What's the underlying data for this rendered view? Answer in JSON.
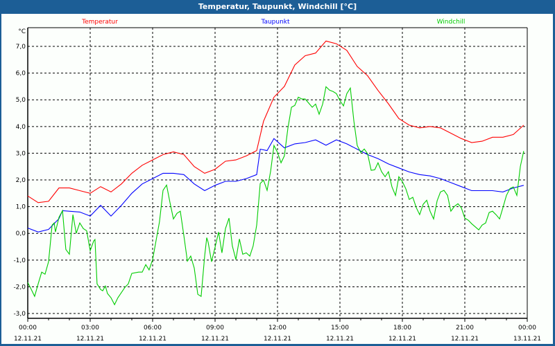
{
  "window": {
    "title": "Temperatur, Taupunkt, Windchill [°C]"
  },
  "chart_data": {
    "type": "line",
    "title": "Temperatur, Taupunkt, Windchill [°C]",
    "ylabel": "°C",
    "xlabel": "",
    "ylim": [
      -3.18,
      7.7
    ],
    "xlim_hours": [
      0,
      24
    ],
    "grid": true,
    "legend_placement": "top",
    "y_ticks": [
      {
        "v": 7,
        "label": "7,0"
      },
      {
        "v": 6,
        "label": "6,0"
      },
      {
        "v": 5,
        "label": "5,0"
      },
      {
        "v": 4,
        "label": "4,0"
      },
      {
        "v": 3,
        "label": "3,0"
      },
      {
        "v": 2,
        "label": "2,0"
      },
      {
        "v": 1,
        "label": "1,0"
      },
      {
        "v": 0,
        "label": "0,0"
      },
      {
        "v": -1,
        "label": "-1,0"
      },
      {
        "v": -2,
        "label": "-2,0"
      },
      {
        "v": -3,
        "label": "-3,0"
      }
    ],
    "x_ticks": [
      {
        "h": 0,
        "time": "00:00",
        "date": "12.11.21"
      },
      {
        "h": 3,
        "time": "03:00",
        "date": "12.11.21"
      },
      {
        "h": 6,
        "time": "06:00",
        "date": "12.11.21"
      },
      {
        "h": 9,
        "time": "09:00",
        "date": "12.11.21"
      },
      {
        "h": 12,
        "time": "12:00",
        "date": "12.11.21"
      },
      {
        "h": 15,
        "time": "15:00",
        "date": "12.11.21"
      },
      {
        "h": 18,
        "time": "18:00",
        "date": "12.11.21"
      },
      {
        "h": 21,
        "time": "21:00",
        "date": "12.11.21"
      },
      {
        "h": 24,
        "time": "00:00",
        "date": "13.11.21"
      }
    ],
    "series": [
      {
        "name": "Temperatur",
        "color": "#ff0000",
        "points": [
          [
            0,
            1.4
          ],
          [
            0.5,
            1.15
          ],
          [
            1,
            1.2
          ],
          [
            1.5,
            1.7
          ],
          [
            2,
            1.7
          ],
          [
            2.5,
            1.6
          ],
          [
            3,
            1.5
          ],
          [
            3.5,
            1.75
          ],
          [
            4,
            1.55
          ],
          [
            4.5,
            1.85
          ],
          [
            5,
            2.25
          ],
          [
            5.5,
            2.55
          ],
          [
            6,
            2.75
          ],
          [
            6.5,
            2.95
          ],
          [
            7,
            3.05
          ],
          [
            7.5,
            2.95
          ],
          [
            8,
            2.5
          ],
          [
            8.5,
            2.25
          ],
          [
            9,
            2.4
          ],
          [
            9.5,
            2.7
          ],
          [
            10,
            2.75
          ],
          [
            10.5,
            2.9
          ],
          [
            11,
            3.1
          ],
          [
            11.33,
            4.2
          ],
          [
            11.83,
            5.1
          ],
          [
            12.33,
            5.5
          ],
          [
            12.83,
            6.3
          ],
          [
            13.33,
            6.65
          ],
          [
            13.83,
            6.75
          ],
          [
            14.33,
            7.2
          ],
          [
            14.83,
            7.1
          ],
          [
            15.33,
            6.85
          ],
          [
            15.83,
            6.25
          ],
          [
            16.33,
            5.9
          ],
          [
            16.83,
            5.35
          ],
          [
            17.33,
            4.85
          ],
          [
            17.83,
            4.3
          ],
          [
            18.33,
            4.05
          ],
          [
            18.83,
            3.95
          ],
          [
            19.33,
            4.0
          ],
          [
            19.83,
            3.95
          ],
          [
            20.33,
            3.75
          ],
          [
            20.83,
            3.55
          ],
          [
            21.33,
            3.4
          ],
          [
            21.83,
            3.45
          ],
          [
            22.33,
            3.6
          ],
          [
            22.83,
            3.6
          ],
          [
            23.33,
            3.7
          ],
          [
            23.83,
            4.05
          ]
        ]
      },
      {
        "name": "Taupunkt",
        "color": "#0000ff",
        "points": [
          [
            0,
            0.2
          ],
          [
            0.5,
            0.05
          ],
          [
            1,
            0.15
          ],
          [
            1.5,
            0.55
          ],
          [
            1.67,
            0.85
          ],
          [
            2.5,
            0.8
          ],
          [
            3,
            0.65
          ],
          [
            3.5,
            1.05
          ],
          [
            4,
            0.65
          ],
          [
            4.5,
            1.05
          ],
          [
            5,
            1.5
          ],
          [
            5.5,
            1.85
          ],
          [
            6,
            2.05
          ],
          [
            6.5,
            2.25
          ],
          [
            7,
            2.25
          ],
          [
            7.5,
            2.2
          ],
          [
            8,
            1.85
          ],
          [
            8.5,
            1.6
          ],
          [
            9,
            1.8
          ],
          [
            9.5,
            1.95
          ],
          [
            10,
            1.95
          ],
          [
            10.5,
            2.05
          ],
          [
            11,
            2.2
          ],
          [
            11.17,
            3.15
          ],
          [
            11.5,
            3.1
          ],
          [
            11.83,
            3.55
          ],
          [
            12.33,
            3.2
          ],
          [
            12.83,
            3.35
          ],
          [
            13.33,
            3.4
          ],
          [
            13.83,
            3.5
          ],
          [
            14.33,
            3.3
          ],
          [
            14.83,
            3.5
          ],
          [
            15.33,
            3.35
          ],
          [
            15.83,
            3.15
          ],
          [
            16.33,
            2.95
          ],
          [
            16.83,
            2.8
          ],
          [
            17.33,
            2.6
          ],
          [
            17.83,
            2.45
          ],
          [
            18.33,
            2.3
          ],
          [
            18.83,
            2.2
          ],
          [
            19.33,
            2.15
          ],
          [
            19.83,
            2.05
          ],
          [
            20.33,
            1.9
          ],
          [
            20.83,
            1.75
          ],
          [
            21.33,
            1.6
          ],
          [
            21.83,
            1.6
          ],
          [
            22.33,
            1.6
          ],
          [
            22.83,
            1.55
          ],
          [
            23.33,
            1.7
          ],
          [
            23.83,
            1.8
          ]
        ]
      },
      {
        "name": "Windchill",
        "color": "#00cc00",
        "points": [
          [
            0,
            -1.84
          ],
          [
            0.17,
            -2.1
          ],
          [
            0.33,
            -2.36
          ],
          [
            0.5,
            -1.89
          ],
          [
            0.67,
            -1.45
          ],
          [
            0.83,
            -1.53
          ],
          [
            1,
            -1.06
          ],
          [
            1.17,
            0.31
          ],
          [
            1.27,
            0.39
          ],
          [
            1.33,
            0.05
          ],
          [
            1.5,
            0.6
          ],
          [
            1.67,
            0.85
          ],
          [
            1.83,
            -0.6
          ],
          [
            2,
            -0.78
          ],
          [
            2.17,
            0.7
          ],
          [
            2.33,
            0
          ],
          [
            2.5,
            0.39
          ],
          [
            2.67,
            0.18
          ],
          [
            2.83,
            0.1
          ],
          [
            3,
            -0.65
          ],
          [
            3.17,
            -0.28
          ],
          [
            3.23,
            -0.23
          ],
          [
            3.33,
            -1.89
          ],
          [
            3.5,
            -2.1
          ],
          [
            3.6,
            -2.15
          ],
          [
            3.73,
            -1.97
          ],
          [
            3.83,
            -2.25
          ],
          [
            4,
            -2.41
          ],
          [
            4.17,
            -2.67
          ],
          [
            4.33,
            -2.41
          ],
          [
            4.67,
            -2.02
          ],
          [
            4.83,
            -1.89
          ],
          [
            5,
            -1.5
          ],
          [
            5.33,
            -1.45
          ],
          [
            5.5,
            -1.45
          ],
          [
            5.67,
            -1.17
          ],
          [
            5.83,
            -1.37
          ],
          [
            6,
            -0.98
          ],
          [
            6.33,
            0.44
          ],
          [
            6.5,
            1.61
          ],
          [
            6.67,
            1.81
          ],
          [
            6.83,
            1.17
          ],
          [
            7,
            0.54
          ],
          [
            7.17,
            0.75
          ],
          [
            7.33,
            0.83
          ],
          [
            7.5,
            -0.08
          ],
          [
            7.67,
            -1.04
          ],
          [
            7.83,
            -0.85
          ],
          [
            8,
            -1.3
          ],
          [
            8.17,
            -2.28
          ],
          [
            8.33,
            -2.36
          ],
          [
            8.5,
            -0.85
          ],
          [
            8.6,
            -0.16
          ],
          [
            8.67,
            -0.34
          ],
          [
            8.83,
            -1.06
          ],
          [
            9,
            -0.52
          ],
          [
            9.17,
            0.05
          ],
          [
            9.33,
            -0.73
          ],
          [
            9.5,
            0.18
          ],
          [
            9.67,
            0.57
          ],
          [
            9.83,
            -0.47
          ],
          [
            10,
            -0.98
          ],
          [
            10.17,
            -0.21
          ],
          [
            10.33,
            -0.78
          ],
          [
            10.5,
            -0.73
          ],
          [
            10.67,
            -0.85
          ],
          [
            10.83,
            -0.47
          ],
          [
            11,
            0.31
          ],
          [
            11.17,
            1.87
          ],
          [
            11.33,
            1.99
          ],
          [
            11.5,
            1.61
          ],
          [
            11.67,
            2.33
          ],
          [
            11.83,
            3.29
          ],
          [
            12,
            3.03
          ],
          [
            12.17,
            2.64
          ],
          [
            12.33,
            2.9
          ],
          [
            12.5,
            3.94
          ],
          [
            12.67,
            4.72
          ],
          [
            12.83,
            4.79
          ],
          [
            13,
            5.1
          ],
          [
            13.17,
            5.03
          ],
          [
            13.33,
            5.03
          ],
          [
            13.67,
            4.72
          ],
          [
            13.83,
            4.84
          ],
          [
            14,
            4.46
          ],
          [
            14.17,
            4.84
          ],
          [
            14.33,
            5.49
          ],
          [
            14.5,
            5.36
          ],
          [
            14.67,
            5.31
          ],
          [
            14.83,
            5.23
          ],
          [
            15,
            4.97
          ],
          [
            15.17,
            4.77
          ],
          [
            15.33,
            5.23
          ],
          [
            15.5,
            5.44
          ],
          [
            15.67,
            4.2
          ],
          [
            15.83,
            3.29
          ],
          [
            16,
            3.03
          ],
          [
            16.17,
            3.16
          ],
          [
            16.33,
            2.98
          ],
          [
            16.5,
            2.36
          ],
          [
            16.67,
            2.38
          ],
          [
            16.83,
            2.64
          ],
          [
            17,
            2.31
          ],
          [
            17.17,
            2.12
          ],
          [
            17.33,
            2.31
          ],
          [
            17.5,
            1.74
          ],
          [
            17.67,
            1.42
          ],
          [
            17.83,
            2.12
          ],
          [
            18,
            1.94
          ],
          [
            18.17,
            1.66
          ],
          [
            18.33,
            1.27
          ],
          [
            18.5,
            1.35
          ],
          [
            18.67,
            0.96
          ],
          [
            18.83,
            0.7
          ],
          [
            19,
            1.09
          ],
          [
            19.17,
            1.24
          ],
          [
            19.33,
            0.83
          ],
          [
            19.5,
            0.54
          ],
          [
            19.67,
            1.22
          ],
          [
            19.83,
            1.55
          ],
          [
            20,
            1.61
          ],
          [
            20.17,
            1.42
          ],
          [
            20.33,
            0.83
          ],
          [
            20.5,
            1.01
          ],
          [
            20.67,
            1.11
          ],
          [
            20.83,
            0.96
          ],
          [
            21,
            0.57
          ],
          [
            21.17,
            0.49
          ],
          [
            21.33,
            0.36
          ],
          [
            21.67,
            0.13
          ],
          [
            21.83,
            0.31
          ],
          [
            22,
            0.39
          ],
          [
            22.17,
            0.78
          ],
          [
            22.33,
            0.83
          ],
          [
            22.5,
            0.7
          ],
          [
            22.67,
            0.54
          ],
          [
            22.83,
            0.96
          ],
          [
            23,
            1.42
          ],
          [
            23.17,
            1.68
          ],
          [
            23.33,
            1.74
          ],
          [
            23.5,
            1.42
          ],
          [
            23.67,
            2.51
          ],
          [
            23.83,
            3.08
          ]
        ]
      }
    ]
  }
}
